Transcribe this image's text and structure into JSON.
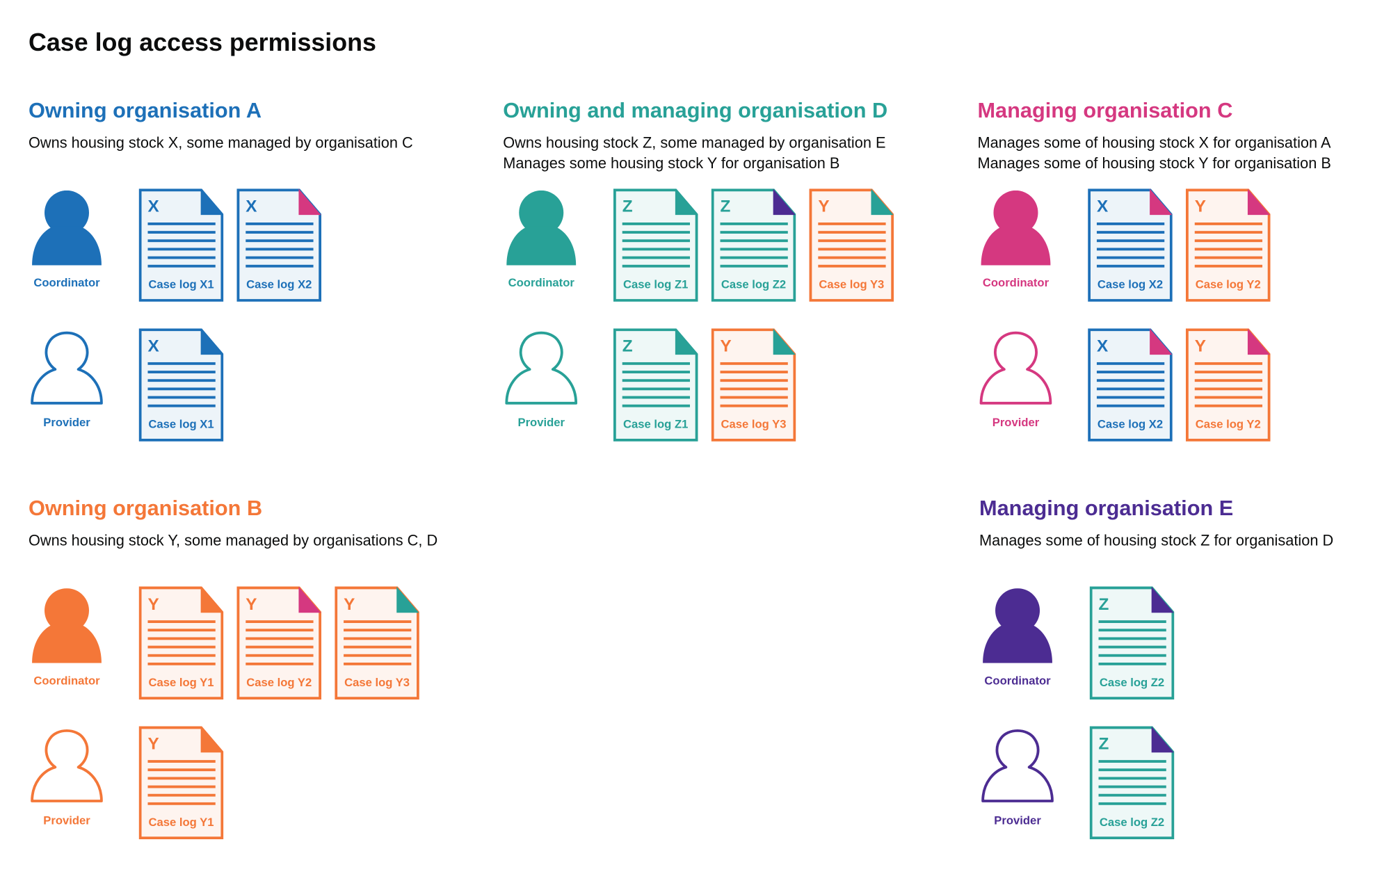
{
  "title": "Case log access permissions",
  "colors": {
    "A": "#1d70b8",
    "B": "#f47738",
    "C": "#d53880",
    "D": "#28a197",
    "E": "#4c2c92"
  },
  "sections": [
    {
      "id": "owning-a",
      "heading": "Owning organisation A",
      "color": "#1d70b8",
      "description": [
        "Owns housing stock X, some managed by organisation C"
      ],
      "roles": [
        {
          "label": "Coordinator",
          "icon": "person-filled-icon",
          "docs": [
            {
              "letter": "X",
              "label": "Case log X1",
              "color": "#1d70b8",
              "fold": "#1d70b8"
            },
            {
              "letter": "X",
              "label": "Case log X2",
              "color": "#1d70b8",
              "fold": "#d53880"
            }
          ]
        },
        {
          "label": "Provider",
          "icon": "person-outline-icon",
          "docs": [
            {
              "letter": "X",
              "label": "Case log X1",
              "color": "#1d70b8",
              "fold": "#1d70b8"
            }
          ]
        }
      ]
    },
    {
      "id": "owning-managing-d",
      "heading": "Owning and managing organisation D",
      "color": "#28a197",
      "description": [
        "Owns housing stock Z, some managed by organisation E",
        "Manages some housing stock Y for organisation B"
      ],
      "roles": [
        {
          "label": "Coordinator",
          "icon": "person-filled-icon",
          "docs": [
            {
              "letter": "Z",
              "label": "Case log Z1",
              "color": "#28a197",
              "fold": "#28a197"
            },
            {
              "letter": "Z",
              "label": "Case log Z2",
              "color": "#28a197",
              "fold": "#4c2c92"
            },
            {
              "letter": "Y",
              "label": "Case log Y3",
              "color": "#f47738",
              "fold": "#28a197"
            }
          ]
        },
        {
          "label": "Provider",
          "icon": "person-outline-icon",
          "docs": [
            {
              "letter": "Z",
              "label": "Case log Z1",
              "color": "#28a197",
              "fold": "#28a197"
            },
            {
              "letter": "Y",
              "label": "Case log Y3",
              "color": "#f47738",
              "fold": "#28a197"
            }
          ]
        }
      ]
    },
    {
      "id": "managing-c",
      "heading": "Managing organisation C",
      "color": "#d53880",
      "description": [
        "Manages some of housing stock X for organisation A",
        "Manages some of housing stock Y for organisation B"
      ],
      "roles": [
        {
          "label": "Coordinator",
          "icon": "person-filled-icon",
          "docs": [
            {
              "letter": "X",
              "label": "Case log X2",
              "color": "#1d70b8",
              "fold": "#d53880"
            },
            {
              "letter": "Y",
              "label": "Case log Y2",
              "color": "#f47738",
              "fold": "#d53880"
            }
          ]
        },
        {
          "label": "Provider",
          "icon": "person-outline-icon",
          "docs": [
            {
              "letter": "X",
              "label": "Case log X2",
              "color": "#1d70b8",
              "fold": "#d53880"
            },
            {
              "letter": "Y",
              "label": "Case log Y2",
              "color": "#f47738",
              "fold": "#d53880"
            }
          ]
        }
      ]
    },
    {
      "id": "owning-b",
      "heading": "Owning organisation B",
      "color": "#f47738",
      "description": [
        "Owns housing stock Y, some managed by organisations C, D"
      ],
      "roles": [
        {
          "label": "Coordinator",
          "icon": "person-filled-icon",
          "docs": [
            {
              "letter": "Y",
              "label": "Case log Y1",
              "color": "#f47738",
              "fold": "#f47738"
            },
            {
              "letter": "Y",
              "label": "Case log Y2",
              "color": "#f47738",
              "fold": "#d53880"
            },
            {
              "letter": "Y",
              "label": "Case log Y3",
              "color": "#f47738",
              "fold": "#28a197"
            }
          ]
        },
        {
          "label": "Provider",
          "icon": "person-outline-icon",
          "docs": [
            {
              "letter": "Y",
              "label": "Case log Y1",
              "color": "#f47738",
              "fold": "#f47738"
            }
          ]
        }
      ]
    },
    {
      "id": "managing-e",
      "heading": "Managing organisation E",
      "color": "#4c2c92",
      "description": [
        "Manages some of housing stock Z for organisation D"
      ],
      "roles": [
        {
          "label": "Coordinator",
          "icon": "person-filled-icon",
          "docs": [
            {
              "letter": "Z",
              "label": "Case log Z2",
              "color": "#28a197",
              "fold": "#4c2c92"
            }
          ]
        },
        {
          "label": "Provider",
          "icon": "person-outline-icon",
          "docs": [
            {
              "letter": "Z",
              "label": "Case log Z2",
              "color": "#28a197",
              "fold": "#4c2c92"
            }
          ]
        }
      ]
    }
  ]
}
